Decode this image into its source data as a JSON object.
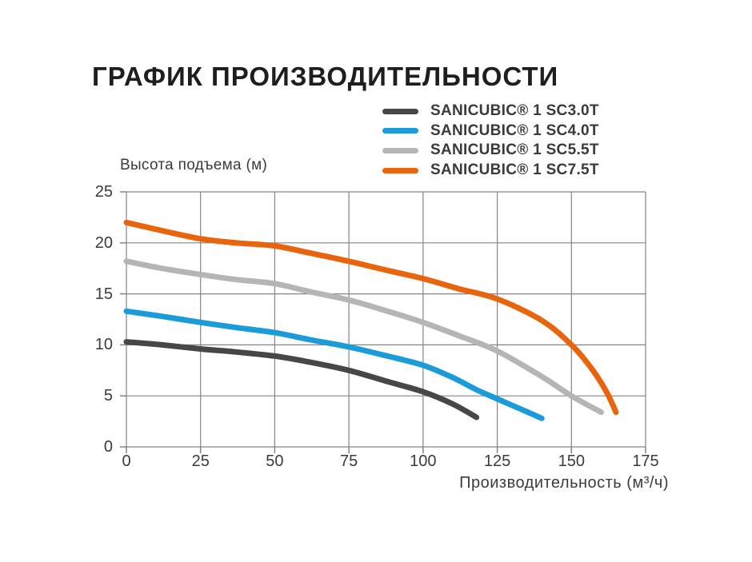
{
  "page": {
    "title": "ГРАФИК ПРОИЗВОДИТЕЛЬНОСТИ"
  },
  "chart_data": {
    "type": "line",
    "title": "ГРАФИК ПРОИЗВОДИТЕЛЬНОСТИ",
    "xlabel": "Производительность (м³/ч)",
    "ylabel": "Высота подъема (м)",
    "xlim": [
      0,
      175
    ],
    "ylim": [
      0,
      25
    ],
    "xticks": [
      0,
      25,
      50,
      75,
      100,
      125,
      150,
      175
    ],
    "yticks": [
      0,
      5,
      10,
      15,
      20,
      25
    ],
    "grid": true,
    "grid_color": "#848484",
    "legend_position": "top-right",
    "series": [
      {
        "name": "SANICUBIC® 1 SC3.0T",
        "color": "#474747",
        "points": [
          [
            0,
            10.3
          ],
          [
            12,
            10.0
          ],
          [
            25,
            9.6
          ],
          [
            37,
            9.3
          ],
          [
            50,
            8.9
          ],
          [
            62,
            8.3
          ],
          [
            75,
            7.5
          ],
          [
            88,
            6.4
          ],
          [
            100,
            5.4
          ],
          [
            110,
            4.2
          ],
          [
            118,
            2.9
          ]
        ]
      },
      {
        "name": "SANICUBIC® 1 SC4.0T",
        "color": "#1b9cd8",
        "points": [
          [
            0,
            13.3
          ],
          [
            12,
            12.8
          ],
          [
            25,
            12.2
          ],
          [
            37,
            11.7
          ],
          [
            50,
            11.2
          ],
          [
            62,
            10.5
          ],
          [
            75,
            9.8
          ],
          [
            88,
            8.9
          ],
          [
            100,
            8.0
          ],
          [
            110,
            6.8
          ],
          [
            118,
            5.6
          ],
          [
            125,
            4.7
          ],
          [
            133,
            3.7
          ],
          [
            140,
            2.8
          ]
        ]
      },
      {
        "name": "SANICUBIC® 1 SC5.5T",
        "color": "#b5b5b5",
        "points": [
          [
            0,
            18.2
          ],
          [
            12,
            17.5
          ],
          [
            25,
            16.9
          ],
          [
            37,
            16.4
          ],
          [
            50,
            16.0
          ],
          [
            62,
            15.2
          ],
          [
            75,
            14.4
          ],
          [
            88,
            13.3
          ],
          [
            100,
            12.2
          ],
          [
            112,
            10.9
          ],
          [
            125,
            9.4
          ],
          [
            140,
            6.9
          ],
          [
            150,
            5.0
          ],
          [
            160,
            3.4
          ]
        ]
      },
      {
        "name": "SANICUBIC® 1 SC7.5T",
        "color": "#e8650e",
        "points": [
          [
            0,
            22.0
          ],
          [
            12,
            21.2
          ],
          [
            25,
            20.4
          ],
          [
            37,
            20.0
          ],
          [
            50,
            19.7
          ],
          [
            62,
            19.0
          ],
          [
            75,
            18.2
          ],
          [
            88,
            17.3
          ],
          [
            100,
            16.5
          ],
          [
            112,
            15.5
          ],
          [
            125,
            14.5
          ],
          [
            140,
            12.4
          ],
          [
            150,
            10.0
          ],
          [
            157,
            7.6
          ],
          [
            162,
            5.3
          ],
          [
            165,
            3.4
          ]
        ]
      }
    ]
  }
}
